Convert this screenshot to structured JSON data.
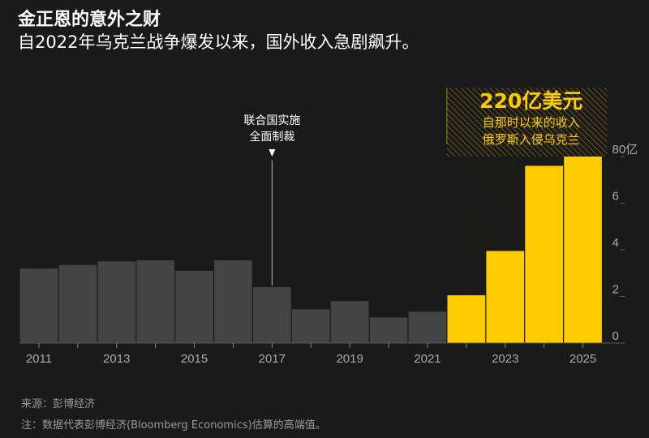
{
  "header": {
    "title": "金正恩的意外之财",
    "subtitle": "自2022年乌克兰战争爆发以来，国外收入急剧飙升。"
  },
  "footer": {
    "source": "来源：彭博经济",
    "note": "注：数据代表彭博经济(Bloomberg Economics)估算的高端值。"
  },
  "colors": {
    "background": "#1a1a1a",
    "bar_before": "#444444",
    "bar_after": "#ffcc00",
    "highlight_text": "#ffcc00",
    "axis_text": "#aaaaaa"
  },
  "chart_data": {
    "type": "bar",
    "categories": [
      "2011",
      "2012",
      "2013",
      "2014",
      "2015",
      "2016",
      "2017",
      "2018",
      "2019",
      "2020",
      "2021",
      "2022",
      "2023",
      "2024",
      "2025"
    ],
    "x_tick_labels": [
      "2011",
      "2013",
      "2015",
      "2017",
      "2019",
      "2021",
      "2023",
      "2025"
    ],
    "values": [
      3.2,
      3.35,
      3.5,
      3.55,
      3.1,
      3.55,
      2.4,
      1.45,
      1.8,
      1.1,
      1.35,
      2.05,
      3.95,
      7.6,
      8.0
    ],
    "ylim": [
      0,
      8
    ],
    "y_ticks": [
      0,
      2,
      4,
      6,
      8
    ],
    "y_tick_labels": [
      "0",
      "2",
      "4",
      "6",
      "80亿"
    ],
    "highlight_start": "2022",
    "annotations": {
      "sanctions": {
        "year": "2017",
        "lines": [
          "联合国实施",
          "全面制裁"
        ]
      },
      "highlight": {
        "value_text": "220亿美元",
        "lines": [
          "自那时以来的收入",
          "俄罗斯入侵乌克兰"
        ]
      }
    }
  }
}
